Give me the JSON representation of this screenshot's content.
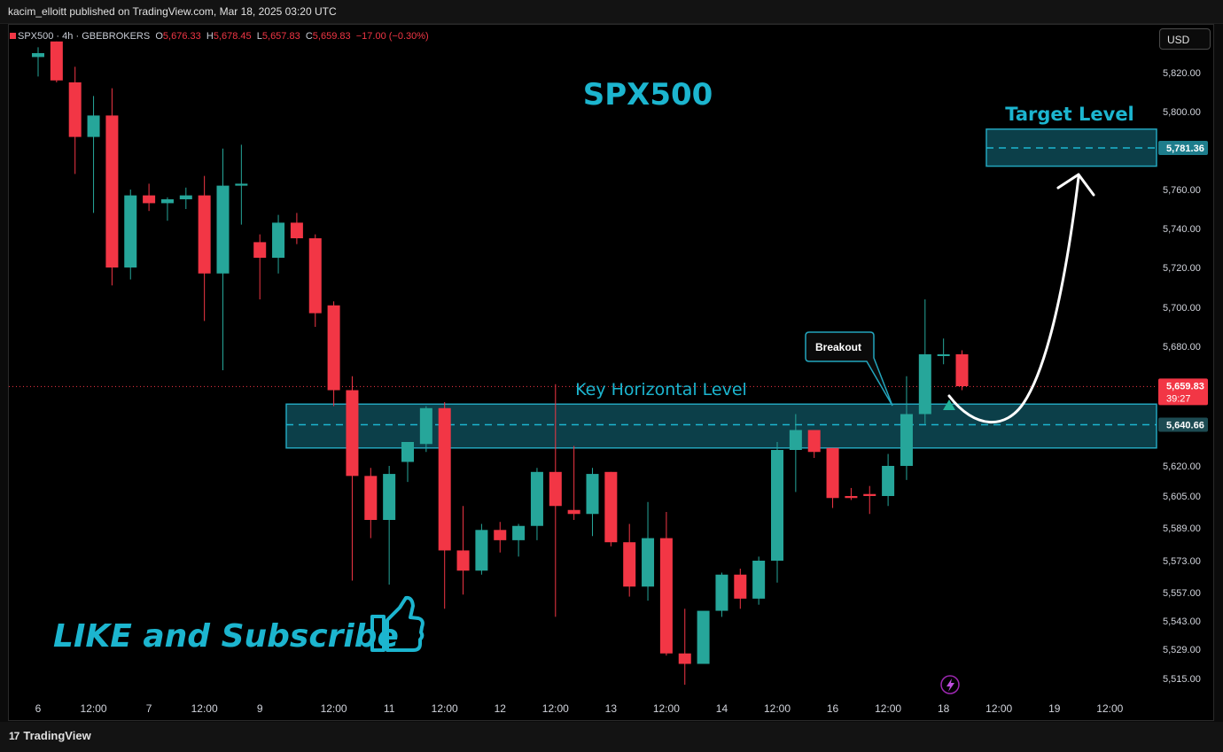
{
  "header": {
    "publish_line": "kacim_elloitt published on TradingView.com, Mar 18, 2025 03:20 UTC"
  },
  "legend": {
    "symbol": "SPX500",
    "interval": "4h",
    "broker": "GBEBROKERS",
    "o_label": "O",
    "o_value": "5,676.33",
    "h_label": "H",
    "h_value": "5,678.45",
    "l_label": "L",
    "l_value": "5,657.83",
    "c_label": "C",
    "c_value": "5,659.83",
    "change": "−17.00 (−0.30%)"
  },
  "currency_button": "USD",
  "footer": {
    "brand": "TradingView",
    "logo_glyph": "17"
  },
  "annotations": {
    "title": "SPX500",
    "target_label": "Target Level",
    "key_level_label": "Key Horizontal Level",
    "breakout_label": "Breakout",
    "like_text": "LIKE and Subscribe",
    "thumb_icon": "thumbs-up-icon",
    "bolt_icon": "lightning-icon"
  },
  "price_tags": {
    "target": "5,781.36",
    "current": "5,659.83",
    "countdown": "39:27",
    "key_level": "5,640.66"
  },
  "colors": {
    "bull": "#26a69a",
    "bear": "#f23645",
    "accent": "#1cb5cf",
    "zone_fill": "#0c3f49",
    "zone_stroke": "#23a5bd",
    "tag_key": "#163c42"
  },
  "chart_data": {
    "type": "candlestick",
    "symbol": "SPX500",
    "interval": "4h",
    "ylim": [
      5510,
      5835
    ],
    "y_ticks": [
      {
        "value": 5820,
        "label": "5,820.00"
      },
      {
        "value": 5800,
        "label": "5,800.00"
      },
      {
        "value": 5760,
        "label": "5,760.00"
      },
      {
        "value": 5740,
        "label": "5,740.00"
      },
      {
        "value": 5720,
        "label": "5,720.00"
      },
      {
        "value": 5700,
        "label": "5,700.00"
      },
      {
        "value": 5680,
        "label": "5,680.00"
      },
      {
        "value": 5620,
        "label": "5,620.00"
      },
      {
        "value": 5605,
        "label": "5,605.00"
      },
      {
        "value": 5589,
        "label": "5,589.00"
      },
      {
        "value": 5573,
        "label": "5,573.00"
      },
      {
        "value": 5557,
        "label": "5,557.00"
      },
      {
        "value": 5543,
        "label": "5,543.00"
      },
      {
        "value": 5529,
        "label": "5,529.00"
      },
      {
        "value": 5515,
        "label": "5,515.00"
      }
    ],
    "x_ticks": [
      {
        "index": 0,
        "label": "6"
      },
      {
        "index": 3,
        "label": "12:00"
      },
      {
        "index": 6,
        "label": "7"
      },
      {
        "index": 9,
        "label": "12:00"
      },
      {
        "index": 12,
        "label": "9"
      },
      {
        "index": 16,
        "label": "12:00"
      },
      {
        "index": 19,
        "label": "11"
      },
      {
        "index": 22,
        "label": "12:00"
      },
      {
        "index": 25,
        "label": "12"
      },
      {
        "index": 28,
        "label": "12:00"
      },
      {
        "index": 31,
        "label": "13"
      },
      {
        "index": 34,
        "label": "12:00"
      },
      {
        "index": 37,
        "label": "14"
      },
      {
        "index": 40,
        "label": "12:00"
      },
      {
        "index": 43,
        "label": "16"
      },
      {
        "index": 46,
        "label": "12:00"
      },
      {
        "index": 49,
        "label": "18"
      },
      {
        "index": 52,
        "label": "12:00"
      },
      {
        "index": 55,
        "label": "19"
      },
      {
        "index": 58,
        "label": "12:00"
      }
    ],
    "candles": [
      {
        "o": 5828,
        "h": 5833,
        "l": 5818,
        "c": 5830
      },
      {
        "o": 5836,
        "h": 5836,
        "l": 5815,
        "c": 5816
      },
      {
        "o": 5815,
        "h": 5823,
        "l": 5768,
        "c": 5787
      },
      {
        "o": 5787,
        "h": 5808,
        "l": 5748,
        "c": 5798
      },
      {
        "o": 5798,
        "h": 5812,
        "l": 5711,
        "c": 5720
      },
      {
        "o": 5720,
        "h": 5760,
        "l": 5714,
        "c": 5757
      },
      {
        "o": 5757,
        "h": 5763,
        "l": 5749,
        "c": 5753
      },
      {
        "o": 5753,
        "h": 5756,
        "l": 5744,
        "c": 5755
      },
      {
        "o": 5755,
        "h": 5761,
        "l": 5750,
        "c": 5757
      },
      {
        "o": 5757,
        "h": 5767,
        "l": 5693,
        "c": 5717
      },
      {
        "o": 5717,
        "h": 5781,
        "l": 5668,
        "c": 5762
      },
      {
        "o": 5762,
        "h": 5783,
        "l": 5742,
        "c": 5763
      },
      {
        "o": 5733,
        "h": 5737,
        "l": 5704,
        "c": 5725
      },
      {
        "o": 5725,
        "h": 5747,
        "l": 5717,
        "c": 5743
      },
      {
        "o": 5743,
        "h": 5748,
        "l": 5732,
        "c": 5735
      },
      {
        "o": 5735,
        "h": 5737,
        "l": 5690,
        "c": 5697
      },
      {
        "o": 5701,
        "h": 5703,
        "l": 5650,
        "c": 5658
      },
      {
        "o": 5658,
        "h": 5665,
        "l": 5563,
        "c": 5615
      },
      {
        "o": 5615,
        "h": 5619,
        "l": 5584,
        "c": 5593
      },
      {
        "o": 5593,
        "h": 5620,
        "l": 5561,
        "c": 5616
      },
      {
        "o": 5622,
        "h": 5631,
        "l": 5612,
        "c": 5632
      },
      {
        "o": 5631,
        "h": 5650,
        "l": 5627,
        "c": 5649
      },
      {
        "o": 5649,
        "h": 5652,
        "l": 5549,
        "c": 5578
      },
      {
        "o": 5578,
        "h": 5600,
        "l": 5556,
        "c": 5568
      },
      {
        "o": 5568,
        "h": 5591,
        "l": 5566,
        "c": 5588
      },
      {
        "o": 5588,
        "h": 5592,
        "l": 5577,
        "c": 5583
      },
      {
        "o": 5583,
        "h": 5591,
        "l": 5575,
        "c": 5590
      },
      {
        "o": 5590,
        "h": 5619,
        "l": 5583,
        "c": 5617
      },
      {
        "o": 5617,
        "h": 5661,
        "l": 5545,
        "c": 5600
      },
      {
        "o": 5598,
        "h": 5630,
        "l": 5593,
        "c": 5596
      },
      {
        "o": 5596,
        "h": 5619,
        "l": 5585,
        "c": 5616
      },
      {
        "o": 5617,
        "h": 5617,
        "l": 5580,
        "c": 5582
      },
      {
        "o": 5582,
        "h": 5591,
        "l": 5555,
        "c": 5560
      },
      {
        "o": 5560,
        "h": 5602,
        "l": 5553,
        "c": 5584
      },
      {
        "o": 5584,
        "h": 5597,
        "l": 5526,
        "c": 5527
      },
      {
        "o": 5527,
        "h": 5549,
        "l": 5512,
        "c": 5522
      },
      {
        "o": 5522,
        "h": 5546,
        "l": 5522,
        "c": 5548
      },
      {
        "o": 5548,
        "h": 5567,
        "l": 5545,
        "c": 5566
      },
      {
        "o": 5566,
        "h": 5569,
        "l": 5549,
        "c": 5554
      },
      {
        "o": 5554,
        "h": 5575,
        "l": 5551,
        "c": 5573
      },
      {
        "o": 5573,
        "h": 5632,
        "l": 5562,
        "c": 5628
      },
      {
        "o": 5628,
        "h": 5646,
        "l": 5607,
        "c": 5638
      },
      {
        "o": 5638,
        "h": 5638,
        "l": 5624,
        "c": 5627
      },
      {
        "o": 5629,
        "h": 5629,
        "l": 5599,
        "c": 5604
      },
      {
        "o": 5605,
        "h": 5609,
        "l": 5603,
        "c": 5604
      },
      {
        "o": 5606,
        "h": 5610,
        "l": 5596,
        "c": 5605
      },
      {
        "o": 5605,
        "h": 5626,
        "l": 5600,
        "c": 5620
      },
      {
        "o": 5620,
        "h": 5665,
        "l": 5613,
        "c": 5646
      },
      {
        "o": 5646,
        "h": 5704,
        "l": 5641,
        "c": 5676
      },
      {
        "o": 5676,
        "h": 5684,
        "l": 5671,
        "c": 5676
      },
      {
        "o": 5676,
        "h": 5678,
        "l": 5658,
        "c": 5660
      }
    ],
    "current_price": 5659.83,
    "key_level": 5640.66,
    "key_zone": [
      5629,
      5651
    ],
    "target_level": 5781.36,
    "target_zone": [
      5772,
      5791
    ]
  }
}
